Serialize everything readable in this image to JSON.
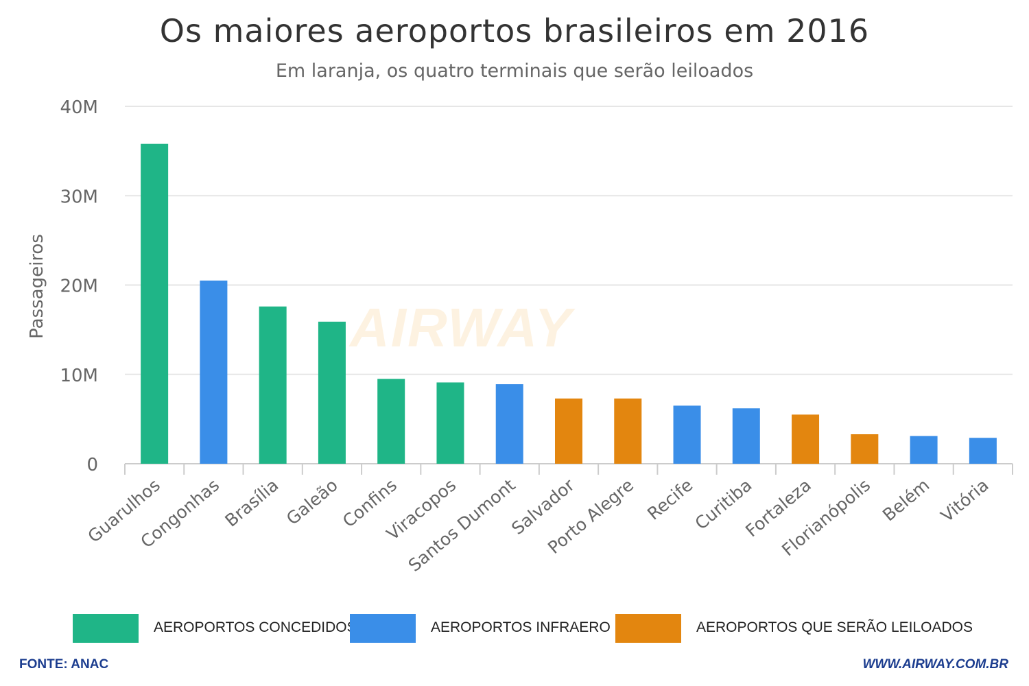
{
  "title": "Os maiores aeroportos brasileiros em 2016",
  "subtitle": "Em laranja, os quatro terminais que serão leiloados",
  "watermark": "AIRWAY",
  "source": "FONTE: ANAC",
  "site": "WWW.AIRWAY.COM.BR",
  "colors": {
    "concedidos": "#1fb587",
    "infraero": "#3a8ee8",
    "leiloados": "#e3860f",
    "grid": "#e6e6e6",
    "axis": "#cccccc"
  },
  "chart_data": {
    "type": "bar",
    "ylabel": "Passageiros",
    "ylim": [
      0,
      40000000
    ],
    "y_ticks": [
      {
        "value": 0,
        "label": "0"
      },
      {
        "value": 10000000,
        "label": "10M"
      },
      {
        "value": 20000000,
        "label": "20M"
      },
      {
        "value": 30000000,
        "label": "30M"
      },
      {
        "value": 40000000,
        "label": "40M"
      }
    ],
    "grid": true,
    "legend_position": "bottom",
    "categories": [
      "Guarulhos",
      "Congonhas",
      "Brasília",
      "Galeão",
      "Confins",
      "Viracopos",
      "Santos Dumont",
      "Salvador",
      "Porto Alegre",
      "Recife",
      "Curitiba",
      "Fortaleza",
      "Florianópolis",
      "Belém",
      "Vitória"
    ],
    "values": [
      35800000,
      20500000,
      17600000,
      15900000,
      9500000,
      9100000,
      8900000,
      7300000,
      7300000,
      6500000,
      6200000,
      5500000,
      3300000,
      3100000,
      2900000
    ],
    "groups": [
      "concedidos",
      "infraero",
      "concedidos",
      "concedidos",
      "concedidos",
      "concedidos",
      "infraero",
      "leiloados",
      "leiloados",
      "infraero",
      "infraero",
      "leiloados",
      "leiloados",
      "infraero",
      "infraero"
    ],
    "legend": [
      {
        "key": "concedidos",
        "label": "AEROPORTOS CONCEDIDOS"
      },
      {
        "key": "infraero",
        "label": "AEROPORTOS INFRAERO"
      },
      {
        "key": "leiloados",
        "label": "AEROPORTOS QUE SERÃO LEILOADOS"
      }
    ]
  }
}
